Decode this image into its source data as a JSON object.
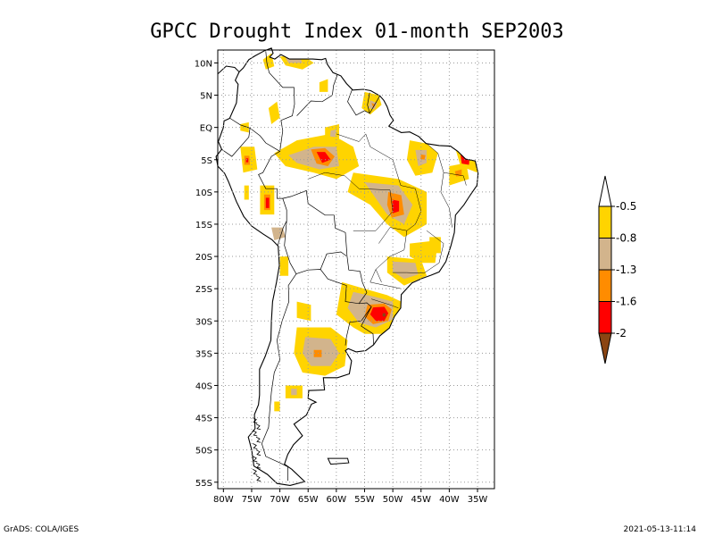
{
  "title": "GPCC Drought Index 01-month SEP2003",
  "footer": {
    "left": "GrADS: COLA/IGES",
    "right": "2021-05-13-11:14"
  },
  "axes": {
    "x_ticks": [
      "80W",
      "75W",
      "70W",
      "65W",
      "60W",
      "55W",
      "50W",
      "45W",
      "40W",
      "35W"
    ],
    "y_ticks": [
      "10N",
      "5N",
      "EQ",
      "5S",
      "10S",
      "15S",
      "20S",
      "25S",
      "30S",
      "35S",
      "40S",
      "45S",
      "50S",
      "55S"
    ],
    "lon_range": [
      -81,
      -32
    ],
    "lat_range": [
      12,
      -56
    ],
    "grid": "dotted"
  },
  "legend": {
    "labels": [
      "-0.5",
      "-0.8",
      "-1.3",
      "-1.6",
      "-2"
    ],
    "colors": [
      "#ffd400",
      "#d2b48c",
      "#ff8c00",
      "#ff0000",
      "#8b4513"
    ]
  },
  "colors": {
    "yellow": "#ffd400",
    "tan": "#d2b48c",
    "orange": "#ff8c00",
    "red": "#ff0000",
    "brown": "#8b4513"
  }
}
